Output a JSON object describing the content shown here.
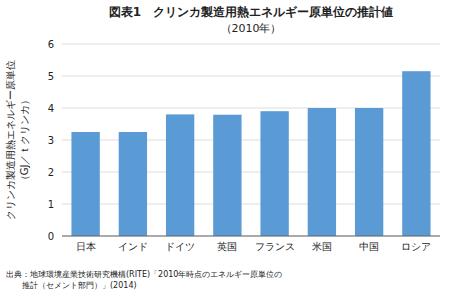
{
  "chart_data": {
    "type": "bar",
    "title": "図表1　クリンカ製造用熱エネルギー原単位の推計値",
    "subtitle": "（2010年）",
    "categories": [
      "日本",
      "インド",
      "ドイツ",
      "英国",
      "フランス",
      "米国",
      "中国",
      "ロシア"
    ],
    "values": [
      3.25,
      3.25,
      3.8,
      3.79,
      3.9,
      4.0,
      4.0,
      5.15
    ],
    "color": "#5B9BD5",
    "y_label": [
      "クリンカ製造用熱エネルギー原単位",
      "（GJ／ｔクリンカ）"
    ],
    "ylim": [
      0,
      6
    ],
    "yticks": [
      0,
      1,
      2,
      3,
      4,
      5,
      6
    ],
    "grid": true,
    "source": [
      "出典：地球環境産業技術研究機構(RITE)「2010年時点のエネルギー原単位の",
      "　　推計（セメント部門）」(2014)"
    ]
  }
}
